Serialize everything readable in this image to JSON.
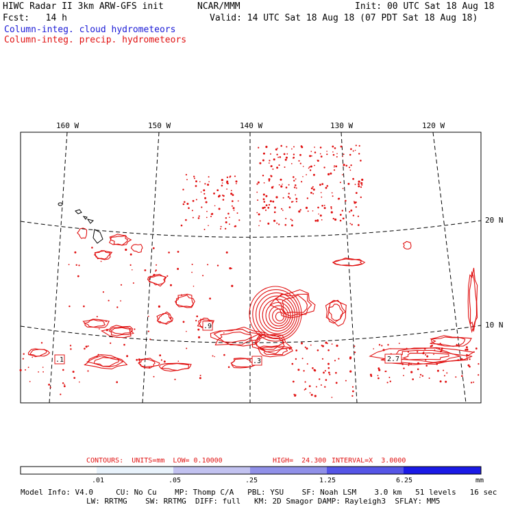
{
  "header": {
    "title": "HIWC Radar II 3km ARW-GFS init",
    "org": "NCAR/MMM",
    "init": "Init: 00 UTC Sat 18 Aug 18",
    "fcst": "Fcst:   14 h",
    "valid": "Valid: 14 UTC Sat 18 Aug 18 (07 PDT Sat 18 Aug 18)",
    "legend_cloud": "Column-integ. cloud hydrometeors",
    "legend_precip": "Column-integ. precip. hydrometeors"
  },
  "colors": {
    "cloud": "#1a1ad6",
    "precip": "#e01010"
  },
  "map": {
    "lon_labels": [
      "160 W",
      "150 W",
      "140 W",
      "130 W",
      "120 W"
    ],
    "lat_labels": [
      "20 N",
      "10 N"
    ],
    "boxed_values": [
      ".1",
      ".9",
      ".3",
      "2.7"
    ]
  },
  "contour_info": {
    "contours": "CONTOURS:  UNITS=mm  LOW= 0.10000",
    "high": "HIGH=  24.300",
    "interval": "INTERVAL=X  3.0000"
  },
  "colorbar": {
    "ticks": [
      ".01",
      ".05",
      ".25",
      "1.25",
      "6.25"
    ],
    "unit": "mm",
    "colors": [
      "#ffffff",
      "#e8f2fb",
      "#c2c2f0",
      "#9090e8",
      "#5555e6",
      "#1a1ae6"
    ]
  },
  "footer": {
    "line1": "Model Info: V4.0     CU: No Cu    MP: Thomp C/A   PBL: YSU    SF: Noah LSM    3.0 km   51 levels   16 sec",
    "line2": "LW: RRTMG    SW: RRTMG  DIFF: full   KM: 2D Smagor DAMP: Rayleigh3  SFLAY: MM5"
  }
}
